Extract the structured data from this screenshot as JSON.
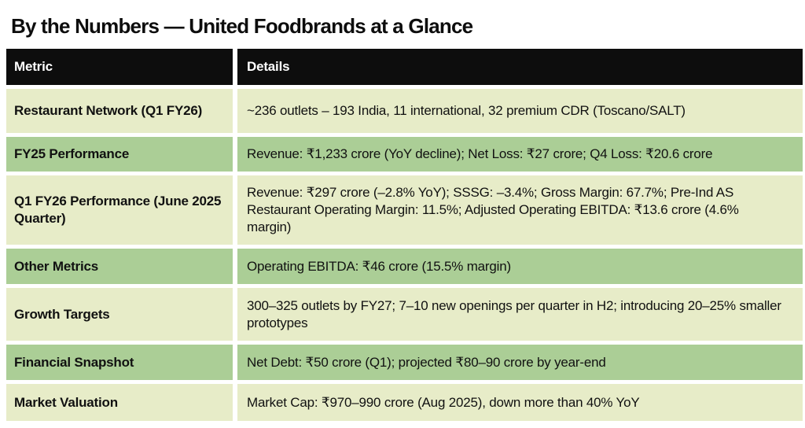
{
  "page": {
    "title": "By the Numbers — United Foodbrands at a Glance"
  },
  "table": {
    "headers": [
      "Metric",
      "Details"
    ],
    "rows": [
      {
        "metric": "Restaurant Network (Q1 FY26)",
        "details": "~236 outlets – 193 India, 11 international, 32 premium CDR (Toscano/SALT)",
        "shade": "light"
      },
      {
        "metric": "FY25 Performance",
        "details": "Revenue: ₹1,233 crore (YoY decline); Net Loss: ₹27 crore; Q4 Loss: ₹20.6 crore",
        "shade": "medium"
      },
      {
        "metric": "Q1 FY26 Performance (June 2025 Quarter)",
        "details": "Revenue: ₹297 crore (–2.8% YoY); SSSG: –3.4%; Gross Margin: 67.7%; Pre-Ind AS Restaurant Operating Margin: 11.5%; Adjusted Operating EBITDA: ₹13.6 crore (4.6% margin)",
        "shade": "light"
      },
      {
        "metric": "Other Metrics",
        "details": "Operating EBITDA: ₹46 crore (15.5% margin)",
        "shade": "medium"
      },
      {
        "metric": "Growth Targets",
        "details": "300–325 outlets by FY27; 7–10 new openings per quarter in H2; introducing 20–25% smaller prototypes",
        "shade": "light"
      },
      {
        "metric": "Financial Snapshot",
        "details": "Net Debt: ₹50 crore (Q1); projected ₹80–90 crore by year-end",
        "shade": "medium"
      },
      {
        "metric": "Market Valuation",
        "details": "Market Cap: ₹970–990 crore (Aug 2025), down more than 40% YoY",
        "shade": "light"
      }
    ],
    "colors": {
      "header_bg": "#0d0d0d",
      "header_text": "#ffffff",
      "row_light_bg": "#e7ecc8",
      "row_medium_bg": "#abce96",
      "body_text": "#111111"
    }
  }
}
